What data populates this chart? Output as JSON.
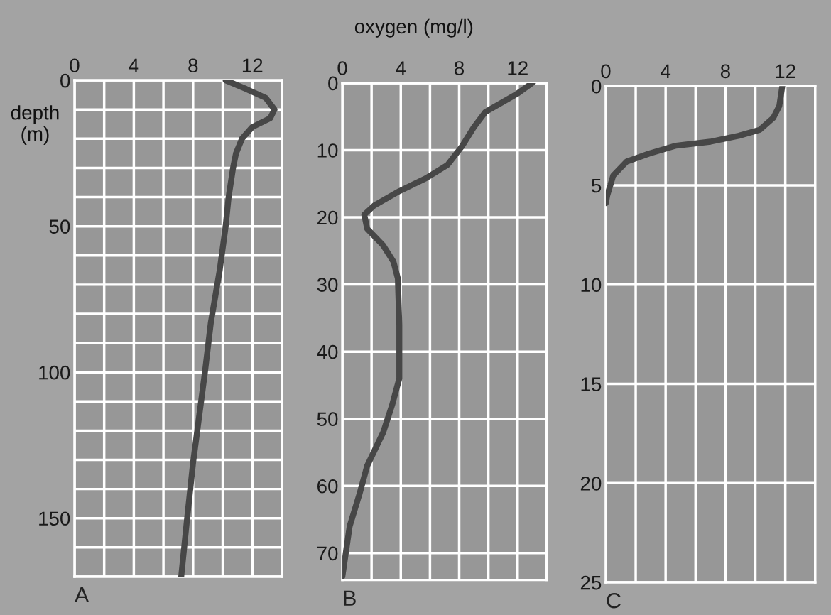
{
  "chart_data": [
    {
      "type": "line",
      "ylabel": "depth\n(m)",
      "annotations": [
        "A"
      ],
      "xlim": [
        0,
        14
      ],
      "ylim": [
        170,
        0
      ],
      "xticks": [
        0,
        {
          "value": 2,
          "label": null
        },
        4,
        {
          "value": 6,
          "label": null
        },
        8,
        {
          "value": 10,
          "label": null
        },
        12,
        {
          "value": 14,
          "label": null
        }
      ],
      "yticks": [
        0,
        {
          "value": 10,
          "label": null
        },
        {
          "value": 20,
          "label": null
        },
        {
          "value": 30,
          "label": null
        },
        {
          "value": 40,
          "label": null
        },
        50,
        {
          "value": 60,
          "label": null
        },
        {
          "value": 70,
          "label": null
        },
        {
          "value": 80,
          "label": null
        },
        {
          "value": 90,
          "label": null
        },
        100,
        {
          "value": 110,
          "label": null
        },
        {
          "value": 120,
          "label": null
        },
        {
          "value": 130,
          "label": null
        },
        {
          "value": 140,
          "label": null
        },
        150,
        {
          "value": 160,
          "label": null
        },
        {
          "value": 170,
          "label": null
        }
      ],
      "grid": true,
      "marker": "none",
      "line_style": "solid",
      "series": [
        {
          "color": "#474747",
          "x": [
            10.2,
            11.6,
            12.9,
            13.5,
            13.2,
            12.0,
            11.3,
            10.9,
            10.7,
            10.4,
            10.2,
            9.8,
            9.2,
            8.8,
            8.0,
            7.6,
            7.2
          ],
          "values": [
            0,
            3,
            6,
            10,
            13,
            16,
            20,
            25,
            30,
            40,
            50,
            65,
            83,
            100,
            131,
            150,
            170
          ]
        }
      ]
    },
    {
      "type": "line",
      "xlabel": "oxygen (mg/l)",
      "annotations": [
        "B"
      ],
      "xlim": [
        0,
        14
      ],
      "ylim": [
        74,
        0
      ],
      "xticks": [
        0,
        {
          "value": 2,
          "label": null
        },
        4,
        {
          "value": 6,
          "label": null
        },
        8,
        {
          "value": 10,
          "label": null
        },
        12,
        {
          "value": 14,
          "label": null
        }
      ],
      "yticks": [
        0,
        10,
        20,
        30,
        40,
        50,
        60,
        70
      ],
      "grid": true,
      "marker": "none",
      "line_style": "solid",
      "series": [
        {
          "color": "#474747",
          "x": [
            13.0,
            11.9,
            9.8,
            9.0,
            8.2,
            7.2,
            5.7,
            3.9,
            2.2,
            1.5,
            1.7,
            2.8,
            3.5,
            3.8,
            3.9,
            3.9,
            3.9,
            3.4,
            2.8,
            1.7,
            1.2,
            0.5,
            0
          ],
          "values": [
            0,
            1.7,
            4.3,
            6.6,
            9.4,
            12.2,
            14.2,
            16.1,
            18.2,
            19.6,
            21.7,
            24.2,
            26.6,
            29.1,
            36,
            40,
            44,
            48,
            52,
            57,
            61,
            66,
            73.5
          ]
        }
      ]
    },
    {
      "type": "line",
      "annotations": [
        "C"
      ],
      "xlim": [
        0,
        14
      ],
      "ylim": [
        25,
        0
      ],
      "xticks": [
        0,
        {
          "value": 2,
          "label": null
        },
        4,
        {
          "value": 6,
          "label": null
        },
        8,
        {
          "value": 10,
          "label": null
        },
        12,
        {
          "value": 14,
          "label": null
        }
      ],
      "yticks": [
        0,
        5,
        10,
        15,
        20,
        25
      ],
      "grid": true,
      "marker": "none",
      "line_style": "solid",
      "series": [
        {
          "color": "#474747",
          "x": [
            11.8,
            11.6,
            11.2,
            10.3,
            8.9,
            7.0,
            4.7,
            2.9,
            1.4,
            0.5,
            0.1,
            0
          ],
          "values": [
            0,
            1.0,
            1.6,
            2.2,
            2.5,
            2.8,
            3.0,
            3.4,
            3.8,
            4.5,
            5.5,
            5.9
          ]
        }
      ]
    }
  ]
}
